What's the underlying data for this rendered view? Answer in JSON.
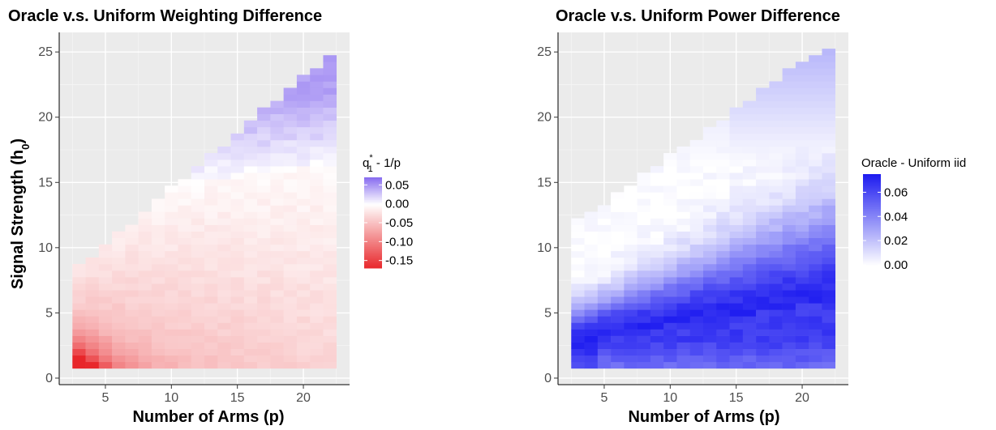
{
  "chart_data": [
    {
      "type": "heatmap",
      "title": "Oracle v.s. Uniform Weighting Difference",
      "xlabel": "Number of Arms (p)",
      "ylabel": "Signal Strength (h",
      "ylabel_sub": "0",
      "ylabel_close": ")",
      "xlim": [
        1.5,
        23.5
      ],
      "ylim": [
        -0.5,
        26.5
      ],
      "x_ticks": [
        5,
        10,
        15,
        20
      ],
      "y_ticks": [
        0,
        5,
        10,
        15,
        20,
        25
      ],
      "x_values": "integers 3 to 22",
      "y_range_data": [
        1,
        25
      ],
      "legend": {
        "title_main": "q",
        "title_sub": "1",
        "title_sup": "*",
        "title_rest": " - 1/p",
        "breaks": [
          "0.05",
          "0.00",
          "-0.05",
          "-0.10",
          "-0.15"
        ],
        "break_values": [
          0.05,
          0.0,
          -0.05,
          -0.1,
          -0.15
        ],
        "range": [
          -0.17,
          0.07
        ],
        "low_color": "#e8262a",
        "mid_color": "#ffffff",
        "high_color": "#8a6ff0"
      },
      "grid": true,
      "panel_background": "#ebebeb"
    },
    {
      "type": "heatmap",
      "title": "Oracle v.s. Uniform Power Difference",
      "xlabel": "Number of Arms (p)",
      "ylabel": "",
      "xlim": [
        1.5,
        23.5
      ],
      "ylim": [
        -0.5,
        26.5
      ],
      "x_ticks": [
        5,
        10,
        15,
        20
      ],
      "y_ticks": [
        0,
        5,
        10,
        15,
        20,
        25
      ],
      "x_values": "integers 3 to 22",
      "y_range_data": [
        1,
        25
      ],
      "legend": {
        "title": "Oracle - Uniform iid",
        "breaks": [
          "0.06",
          "0.04",
          "0.02",
          "0.00"
        ],
        "break_values": [
          0.06,
          0.04,
          0.02,
          0.0
        ],
        "range": [
          0.0,
          0.075
        ],
        "low_color": "#ffffff",
        "high_color": "#1f1df0"
      },
      "grid": true,
      "panel_background": "#ebebeb"
    }
  ]
}
